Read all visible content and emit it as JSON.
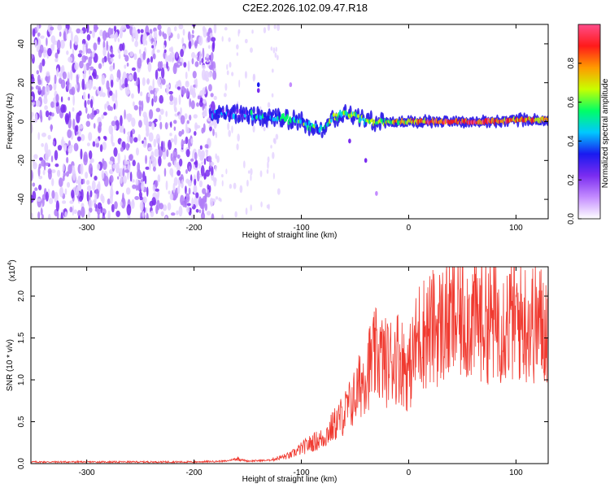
{
  "figure": {
    "title": "C2E2.2026.102.09.47.R18"
  },
  "colors": {
    "snr_line": "#f03a30",
    "colormap": [
      "#ffffff",
      "#c48cff",
      "#7a2cf0",
      "#1a1af0",
      "#00c8ff",
      "#00ff66",
      "#c8ff00",
      "#ff9a00",
      "#ff1a1a",
      "#ff4d8a"
    ]
  },
  "chart_data": [
    {
      "type": "heatmap",
      "xlabel": "Height of straight line (km)",
      "ylabel": "Frequency (Hz)",
      "xlim": [
        -352,
        130
      ],
      "ylim": [
        -50,
        50
      ],
      "xticks": [
        -300,
        -200,
        -100,
        0,
        100
      ],
      "yticks": [
        -40,
        -20,
        0,
        20,
        40
      ],
      "x_tick_labels": [
        "-300",
        "-200",
        "-100",
        "0",
        "100"
      ],
      "y_tick_labels": [
        "-40",
        "-20",
        "0",
        "20",
        "40"
      ],
      "grid": false,
      "noise_region_x": [
        -352,
        -180
      ],
      "ridge": {
        "x": [
          -185,
          -160,
          -140,
          -120,
          -100,
          -90,
          -80,
          -70,
          -60,
          -50,
          -40,
          -30,
          -20,
          0,
          20,
          40,
          60,
          80,
          100,
          130
        ],
        "frequency": [
          4,
          4,
          3,
          2,
          0,
          -3,
          -4,
          2,
          4,
          3,
          0,
          0,
          0,
          0,
          0,
          0,
          0,
          0,
          1,
          1
        ],
        "amplitude": [
          0.3,
          0.35,
          0.4,
          0.45,
          0.5,
          0.55,
          0.4,
          0.5,
          0.5,
          0.55,
          0.6,
          0.65,
          0.7,
          0.75,
          0.85,
          0.9,
          0.9,
          0.85,
          0.8,
          0.75
        ]
      },
      "colorbar": {
        "label": "Normalized spectral amplitude",
        "range": [
          0,
          1
        ],
        "ticks": [
          0,
          0.2,
          0.4,
          0.6,
          0.8
        ],
        "tick_labels": [
          "0.0",
          "0.2",
          "0.4",
          "0.6",
          "0.8"
        ]
      }
    },
    {
      "type": "line",
      "xlabel": "Height of straight line (km)",
      "ylabel": "SNR (10 * v/v)",
      "y_multiplier": "(x10",
      "y_multiplier_exp": "4",
      "y_multiplier_close": ")",
      "xlim": [
        -352,
        130
      ],
      "ylim": [
        0,
        2.35
      ],
      "xticks": [
        -300,
        -200,
        -100,
        0,
        100
      ],
      "yticks": [
        0,
        0.5,
        1.0,
        1.5,
        2.0
      ],
      "x_tick_labels": [
        "-300",
        "-200",
        "-100",
        "0",
        "100"
      ],
      "y_tick_labels": [
        "0.0",
        "0.5",
        "1.0",
        "1.5",
        "2.0"
      ],
      "grid": false,
      "series": [
        {
          "x": [
            -352,
            -250,
            -200,
            -170,
            -160,
            -150,
            -130,
            -110,
            -100,
            -90,
            -80,
            -70,
            -60,
            -50,
            -40,
            -30,
            -20,
            -10,
            0,
            10,
            20,
            30,
            40,
            50,
            60,
            80,
            100,
            130
          ],
          "y": [
            0.02,
            0.02,
            0.02,
            0.03,
            0.06,
            0.03,
            0.04,
            0.1,
            0.18,
            0.25,
            0.3,
            0.45,
            0.6,
            0.8,
            1.1,
            1.3,
            1.2,
            1.3,
            1.1,
            1.55,
            1.6,
            1.65,
            1.7,
            1.75,
            1.75,
            1.7,
            1.72,
            1.65
          ]
        }
      ]
    }
  ]
}
